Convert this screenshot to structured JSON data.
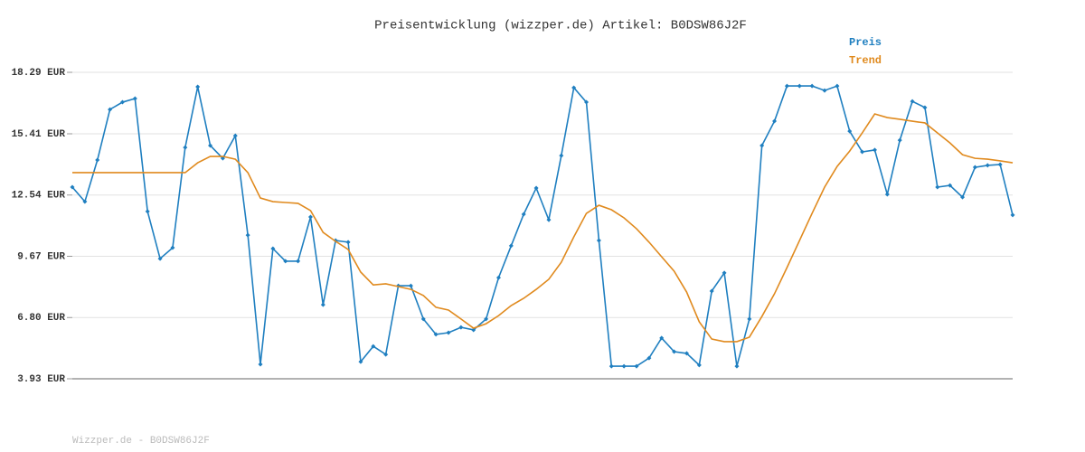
{
  "chart_data": {
    "type": "line",
    "title": "Preisentwicklung (wizzper.de) Artikel: B0DSW86J2F",
    "footer": "Wizzper.de - B0DSW86J2F",
    "categories": [
      null,
      null,
      null,
      null,
      null,
      null,
      null,
      null,
      null,
      null,
      null,
      null,
      null,
      null,
      null,
      null,
      null,
      null,
      null,
      null,
      null,
      null,
      null,
      null,
      null,
      null,
      null,
      null,
      null,
      null,
      null,
      null,
      null,
      null,
      null,
      null,
      null,
      null,
      null,
      null,
      null,
      null,
      null,
      null,
      null,
      null,
      null,
      null,
      null,
      null,
      null,
      null,
      null,
      null,
      null,
      null,
      null,
      null,
      null,
      null,
      null,
      null,
      null,
      null,
      null,
      null,
      null,
      null,
      null,
      null,
      null,
      null,
      null,
      null,
      null,
      null
    ],
    "series": [
      {
        "name": "Preis",
        "color": "#1f7fc0",
        "markers": true,
        "values": [
          12.91,
          12.23,
          14.18,
          16.55,
          16.89,
          17.06,
          11.77,
          9.56,
          10.07,
          14.77,
          17.61,
          14.86,
          14.26,
          15.32,
          10.66,
          4.61,
          10.03,
          9.44,
          9.44,
          11.51,
          7.4,
          10.41,
          10.33,
          4.73,
          5.45,
          5.07,
          8.29,
          8.29,
          6.73,
          6.01,
          6.09,
          6.34,
          6.22,
          6.73,
          8.67,
          10.16,
          11.64,
          12.87,
          11.38,
          14.39,
          17.57,
          16.89,
          10.41,
          4.52,
          4.52,
          4.52,
          4.9,
          5.84,
          5.2,
          5.12,
          4.57,
          8.04,
          8.89,
          4.52,
          6.73,
          14.86,
          16.0,
          17.65,
          17.65,
          17.65,
          17.44,
          17.65,
          15.53,
          14.56,
          14.65,
          12.57,
          15.11,
          16.93,
          16.64,
          12.91,
          12.99,
          12.44,
          13.84,
          13.93,
          13.97,
          11.6
        ]
      },
      {
        "name": "Trend",
        "color": "#e08a1e",
        "markers": false,
        "values": [
          13.59,
          13.59,
          13.59,
          13.59,
          13.59,
          13.59,
          13.59,
          13.59,
          13.59,
          13.59,
          14.05,
          14.35,
          14.35,
          14.22,
          13.59,
          12.4,
          12.23,
          12.19,
          12.15,
          11.81,
          10.79,
          10.37,
          9.99,
          8.93,
          8.33,
          8.38,
          8.25,
          8.12,
          7.83,
          7.28,
          7.15,
          6.73,
          6.3,
          6.51,
          6.89,
          7.36,
          7.7,
          8.12,
          8.59,
          9.39,
          10.58,
          11.68,
          12.06,
          11.85,
          11.47,
          10.96,
          10.33,
          9.65,
          8.97,
          7.99,
          6.6,
          5.79,
          5.67,
          5.67,
          5.88,
          6.85,
          7.91,
          9.14,
          10.41,
          11.68,
          12.91,
          13.88,
          14.6,
          15.45,
          16.34,
          16.17,
          16.09,
          16.0,
          15.92,
          15.45,
          14.98,
          14.43,
          14.26,
          14.22,
          14.14,
          14.05
        ]
      }
    ],
    "ylim": [
      3.93,
      18.29
    ],
    "yticks": [
      {
        "value": 3.93,
        "label": "3.93 EUR"
      },
      {
        "value": 6.8,
        "label": "6.80 EUR"
      },
      {
        "value": 9.67,
        "label": "9.67 EUR"
      },
      {
        "value": 12.54,
        "label": "12.54 EUR"
      },
      {
        "value": 15.41,
        "label": "15.41 EUR"
      },
      {
        "value": 18.29,
        "label": "18.29 EUR"
      }
    ],
    "grid": true
  }
}
